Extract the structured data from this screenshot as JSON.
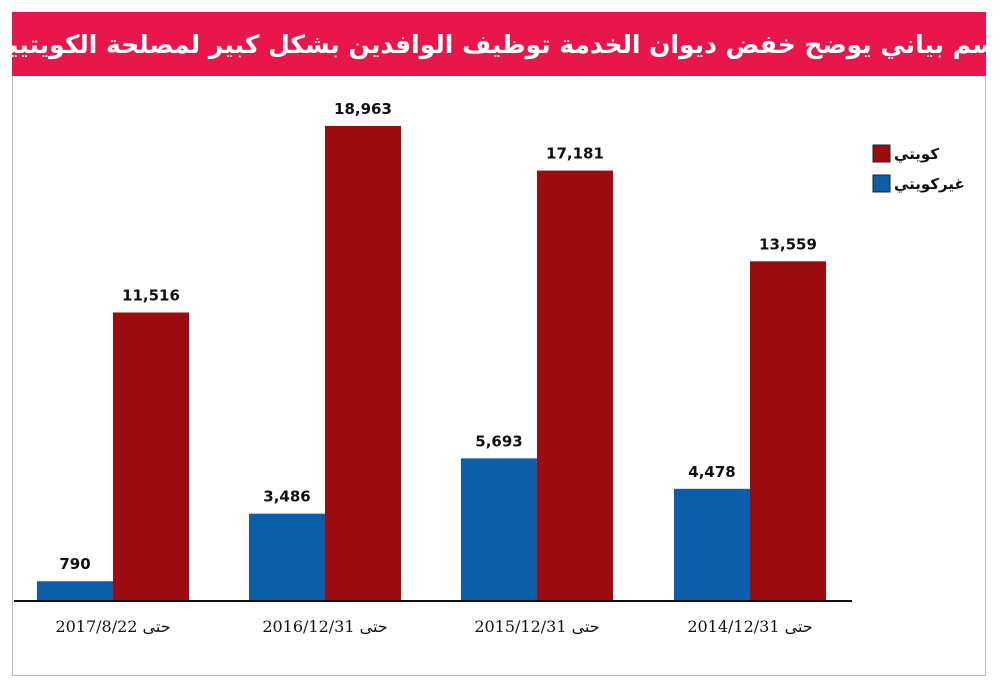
{
  "header": {
    "title": "رسم بياني يوضح خفض ديوان الخدمة توظيف الوافدين بشكل كبير لمصلحة الكويتيين"
  },
  "colors": {
    "banner": "#e8164a",
    "kuwaiti": "#9b0b0f",
    "non_kuwaiti": "#0b5ea8"
  },
  "chart_data": {
    "type": "bar",
    "title": "رسم بياني يوضح خفض ديوان الخدمة توظيف الوافدين بشكل كبير لمصلحة الكويتيين",
    "categories": [
      "حتى 2017/8/22",
      "حتى 2016/12/31",
      "حتى 2015/12/31",
      "حتى 2014/12/31"
    ],
    "series": [
      {
        "name": "غيركويتي",
        "values": [
          790,
          3486,
          5693,
          4478
        ],
        "labels": [
          "790",
          "3,486",
          "5,693",
          "4,478"
        ],
        "color": "#0b5ea8"
      },
      {
        "name": "كويتي",
        "values": [
          11516,
          18963,
          17181,
          13559
        ],
        "labels": [
          "11,516",
          "18,963",
          "17,181",
          "13,559"
        ],
        "color": "#9b0b0f"
      }
    ],
    "xlabel": "",
    "ylabel": "",
    "ylim": [
      0,
      19000
    ],
    "grid": false,
    "legend_position": "top-right"
  }
}
